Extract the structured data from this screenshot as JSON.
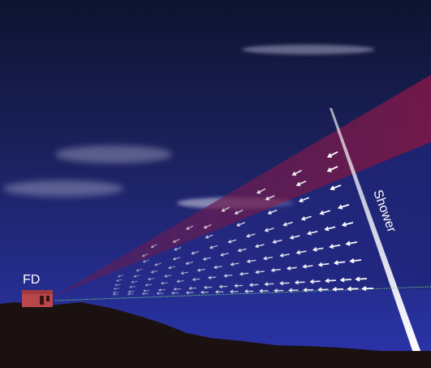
{
  "diagram": {
    "labels": {
      "detector": "FD",
      "shower": "Shower"
    },
    "colors": {
      "sky_top": "#0e1330",
      "sky_mid": "#1f2468",
      "sky_bottom": "#2a33a8",
      "ground": "#1b1110",
      "fov_upper": "#6b1646",
      "fov_lower": "#242c86",
      "shower_axis": "#d8d8f0",
      "building": "#b8474c",
      "horizon_line": "#7bd37b",
      "photon_arrow": "#ffffff"
    }
  }
}
